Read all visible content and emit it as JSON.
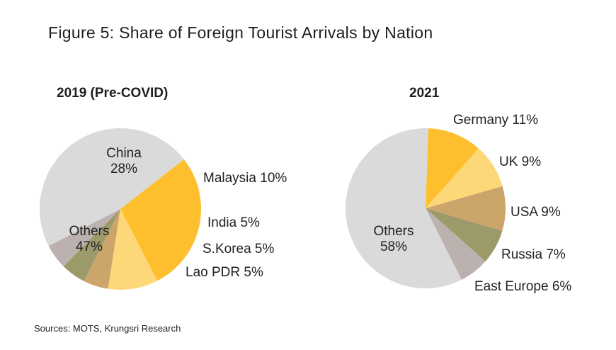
{
  "figure_title": "Figure 5: Share of Foreign Tourist Arrivals by Nation",
  "source": "Sources: MOTS, Krungsri Research",
  "colors": {
    "China": "#fdbf2d",
    "Malaysia": "#fdd878",
    "India": "#cca56a",
    "S.Korea": "#9d9a6a",
    "Lao PDR": "#bbb2b0",
    "Others": "#dadada",
    "Germany": "#fdbf2d",
    "UK": "#fdd878",
    "USA": "#cca56a",
    "Russia": "#9d9a6a",
    "East Europe": "#bbb2b0"
  },
  "chart_data": [
    {
      "type": "pie",
      "title": "2019 (Pre-COVID)",
      "slices": [
        {
          "label": "China",
          "value": 28,
          "text": "China",
          "pct": "28%"
        },
        {
          "label": "Malaysia",
          "value": 10,
          "text": "Malaysia 10%"
        },
        {
          "label": "India",
          "value": 5,
          "text": "India 5%"
        },
        {
          "label": "S.Korea",
          "value": 5,
          "text": "S.Korea 5%"
        },
        {
          "label": "Lao PDR",
          "value": 5,
          "text": "Lao PDR 5%"
        },
        {
          "label": "Others",
          "value": 47,
          "text": "Others",
          "pct": "47%"
        }
      ]
    },
    {
      "type": "pie",
      "title": "2021",
      "slices": [
        {
          "label": "Germany",
          "value": 11,
          "text": "Germany 11%"
        },
        {
          "label": "UK",
          "value": 9,
          "text": "UK 9%"
        },
        {
          "label": "USA",
          "value": 9,
          "text": "USA 9%"
        },
        {
          "label": "Russia",
          "value": 7,
          "text": "Russia 7%"
        },
        {
          "label": "East Europe",
          "value": 6,
          "text": "East Europe 6%"
        },
        {
          "label": "Others",
          "value": 58,
          "text": "Others",
          "pct": "58%"
        }
      ]
    }
  ]
}
